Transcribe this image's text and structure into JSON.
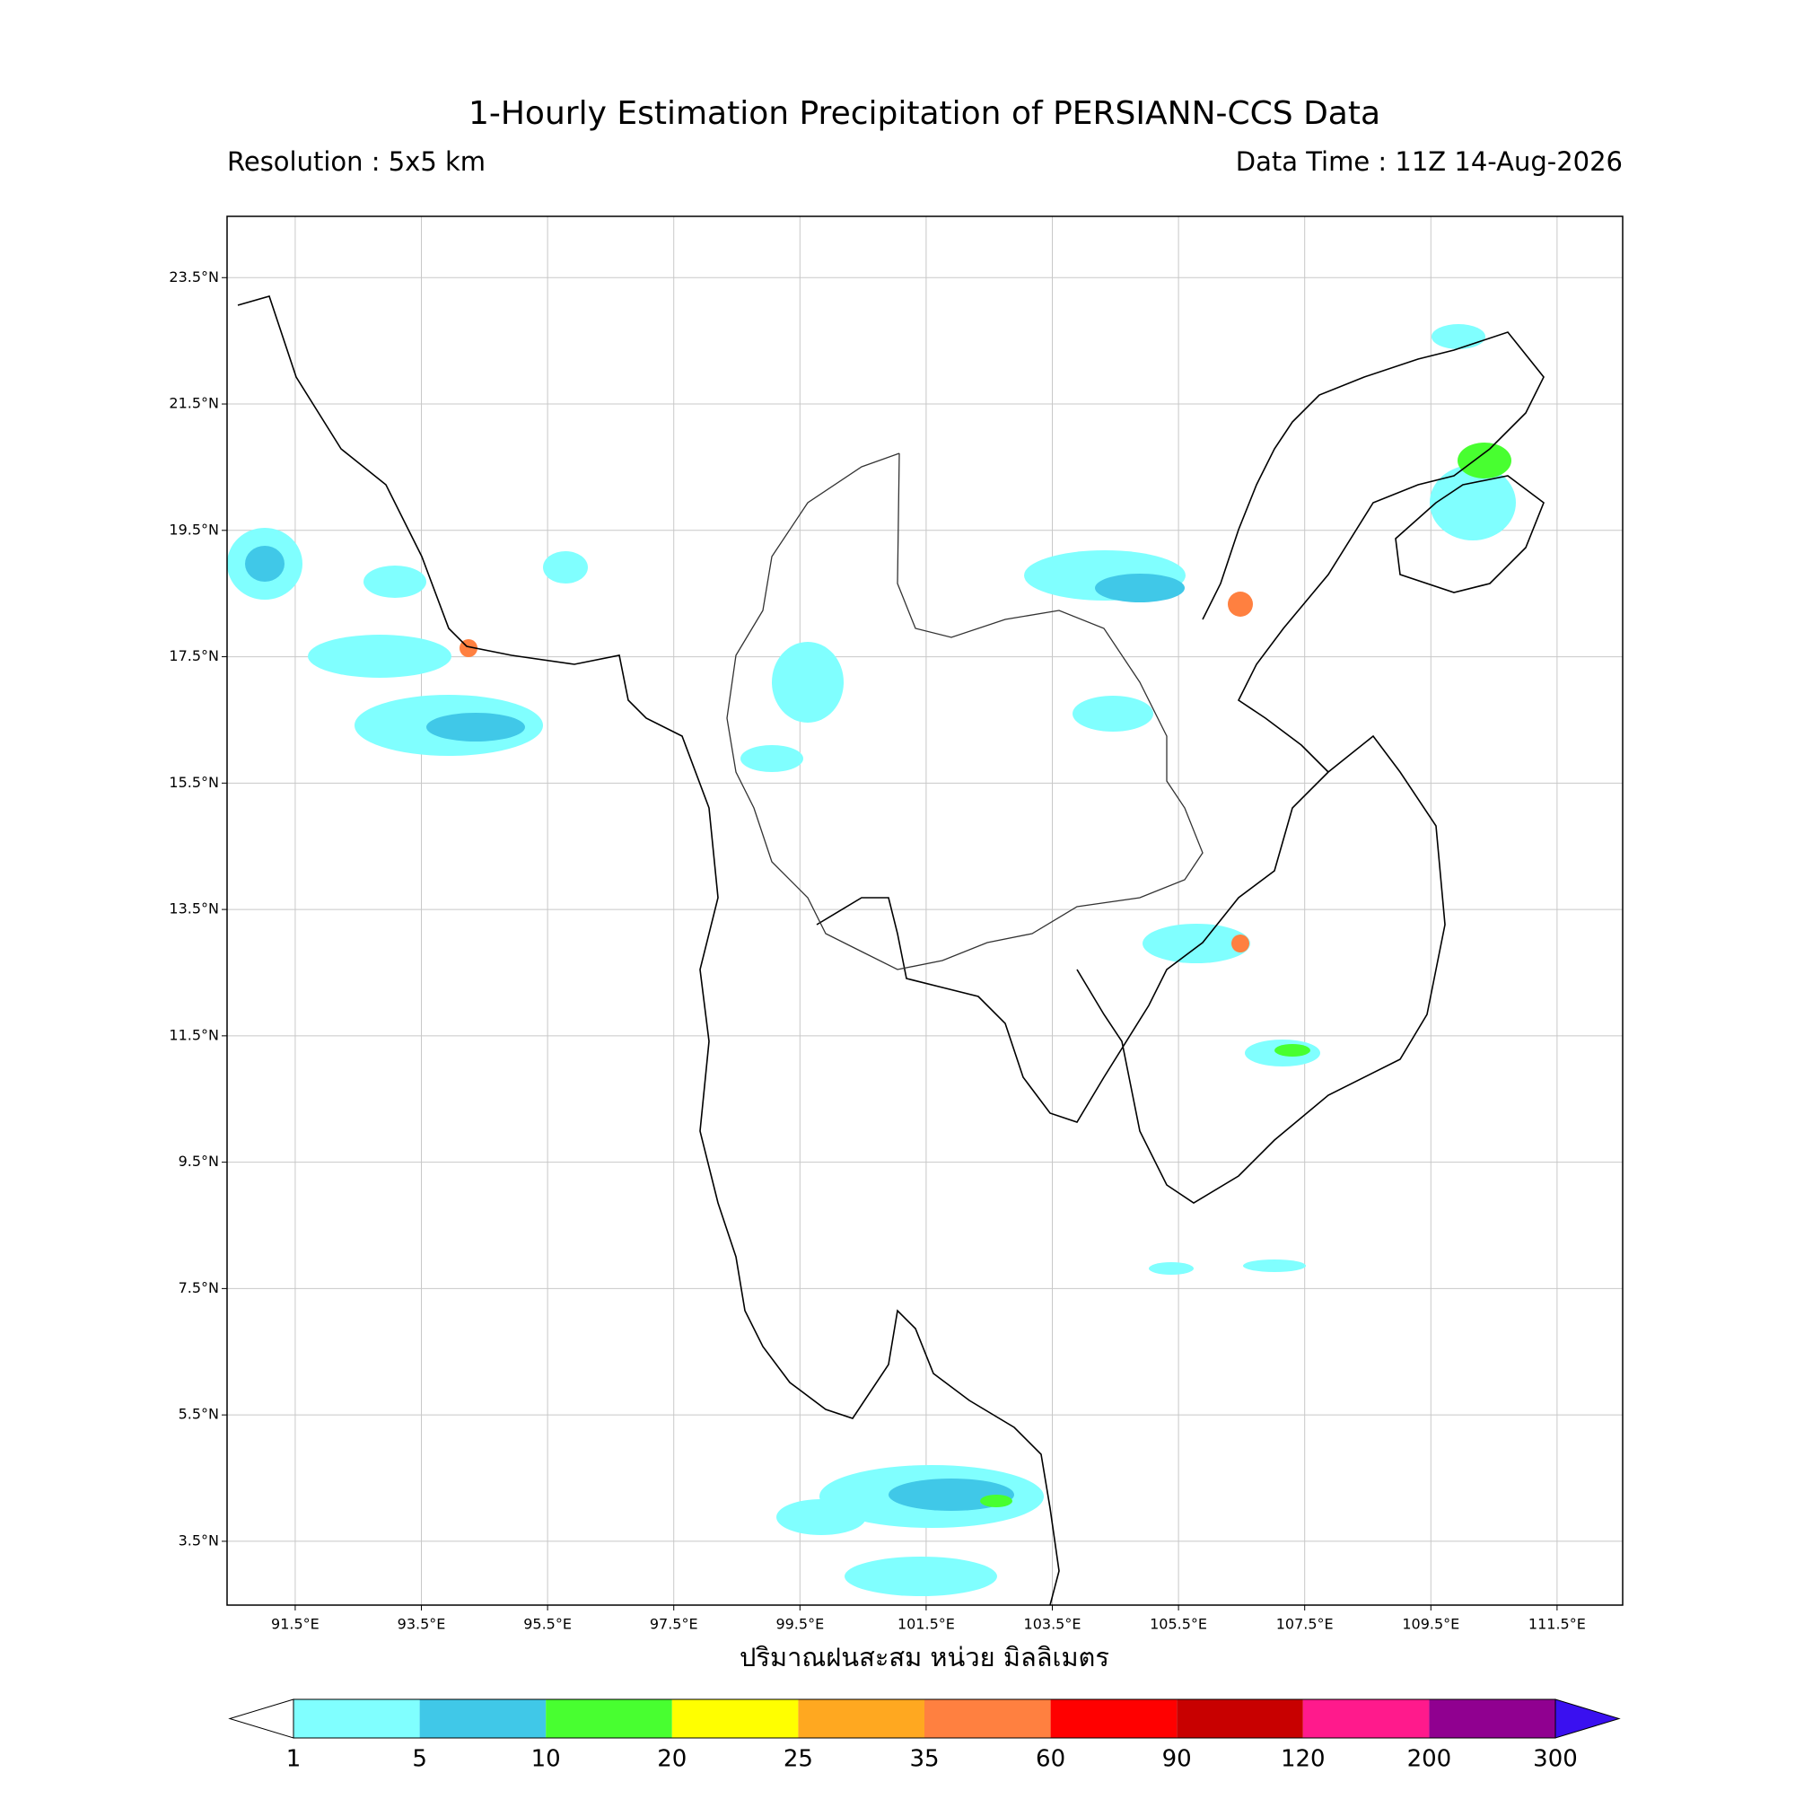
{
  "chart_data": {
    "type": "map",
    "title": "1-Hourly Estimation Precipitation of PERSIANN-CCS Data",
    "subtitle_left": "Resolution : 5x5 km",
    "subtitle_right": "Data Time : 11Z 14-Aug-2026",
    "xlabel": "ปริมาณฝนสะสม หน่วย มิลลิเมตร",
    "xlim": [
      90.42,
      112.54
    ],
    "ylim": [
      2.49,
      24.47
    ],
    "xticks": [
      {
        "value": 91.5,
        "label": "91.5°E"
      },
      {
        "value": 93.5,
        "label": "93.5°E"
      },
      {
        "value": 95.5,
        "label": "95.5°E"
      },
      {
        "value": 97.5,
        "label": "97.5°E"
      },
      {
        "value": 99.5,
        "label": "99.5°E"
      },
      {
        "value": 101.5,
        "label": "101.5°E"
      },
      {
        "value": 103.5,
        "label": "103.5°E"
      },
      {
        "value": 105.5,
        "label": "105.5°E"
      },
      {
        "value": 107.5,
        "label": "107.5°E"
      },
      {
        "value": 109.5,
        "label": "109.5°E"
      },
      {
        "value": 111.5,
        "label": "111.5°E"
      }
    ],
    "yticks": [
      {
        "value": 23.5,
        "label": "23.5°N"
      },
      {
        "value": 21.5,
        "label": "21.5°N"
      },
      {
        "value": 19.5,
        "label": "19.5°N"
      },
      {
        "value": 17.5,
        "label": "17.5°N"
      },
      {
        "value": 15.5,
        "label": "15.5°N"
      },
      {
        "value": 13.5,
        "label": "13.5°N"
      },
      {
        "value": 11.5,
        "label": "11.5°N"
      },
      {
        "value": 9.5,
        "label": "9.5°N"
      },
      {
        "value": 7.5,
        "label": "7.5°N"
      },
      {
        "value": 5.5,
        "label": "5.5°N"
      },
      {
        "value": 3.5,
        "label": "3.5°N"
      }
    ],
    "grid": true,
    "colorbar": {
      "boundaries": [
        1,
        5,
        10,
        20,
        25,
        35,
        60,
        90,
        120,
        200,
        300
      ],
      "colors": [
        "#80ffff",
        "#40c8e8",
        "#48ff30",
        "#ffff00",
        "#ffa820",
        "#ff8040",
        "#ff0000",
        "#c80000",
        "#ff1a8c",
        "#900090"
      ],
      "under_color": "#ffffff",
      "over_color": "#3a10f0"
    }
  }
}
